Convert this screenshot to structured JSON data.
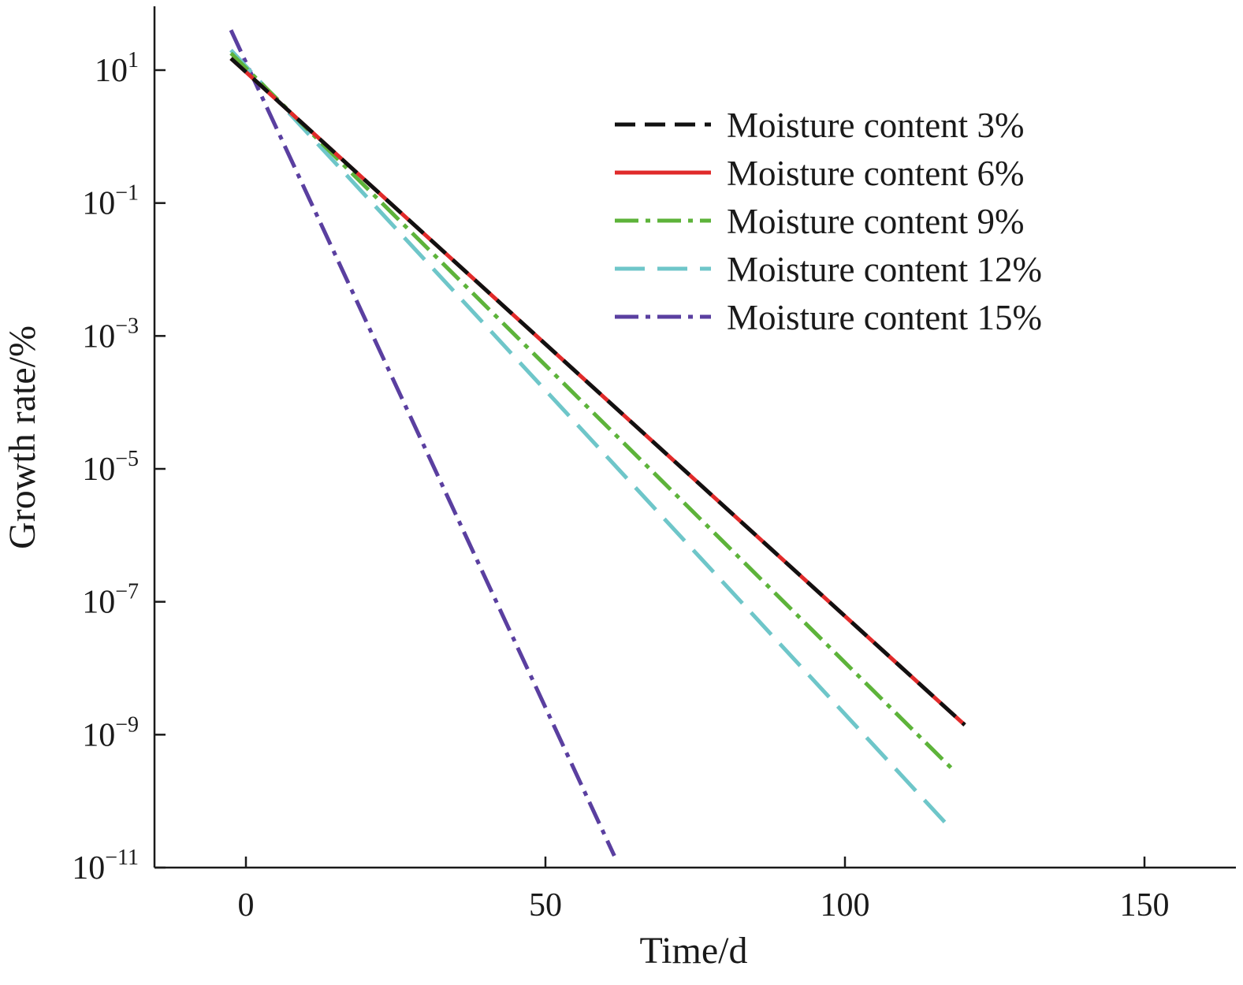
{
  "chart_data": {
    "type": "line",
    "title": "",
    "xlabel": "Time/d",
    "ylabel": "Growth rate/%",
    "xlim": [
      -15,
      165
    ],
    "ylim_log10": [
      -11,
      2
    ],
    "y_scale": "log",
    "x_ticks": [
      0,
      50,
      100,
      150
    ],
    "x_tick_labels": [
      "0",
      "50",
      "100",
      "150"
    ],
    "y_ticks": [
      {
        "exp": 1,
        "base": "10",
        "sup": "1"
      },
      {
        "exp": -1,
        "base": "10",
        "sup": "−1"
      },
      {
        "exp": -3,
        "base": "10",
        "sup": "−3"
      },
      {
        "exp": -5,
        "base": "10",
        "sup": "−5"
      },
      {
        "exp": -7,
        "base": "10",
        "sup": "−7"
      },
      {
        "exp": -9,
        "base": "10",
        "sup": "−9"
      },
      {
        "exp": -11,
        "base": "10",
        "sup": "−11"
      }
    ],
    "grid": false,
    "legend_position": "top-right",
    "series": [
      {
        "name": "Moisture content 3%",
        "color": "#111111",
        "dash": "dash",
        "x": [
          -2.5,
          120
        ],
        "y": [
          15,
          1.4e-09
        ]
      },
      {
        "name": "Moisture content 6%",
        "color": "#e02a2a",
        "dash": "solid",
        "x": [
          -2.5,
          120
        ],
        "y": [
          15,
          1.4e-09
        ]
      },
      {
        "name": "Moisture content 9%",
        "color": "#5db33a",
        "dash": "dashdot",
        "x": [
          -2.5,
          118.5
        ],
        "y": [
          18,
          2.7e-10
        ]
      },
      {
        "name": "Moisture content 12%",
        "color": "#6ec6c9",
        "dash": "longdash",
        "x": [
          -2.5,
          117.5
        ],
        "y": [
          20,
          4e-11
        ]
      },
      {
        "name": "Moisture content 15%",
        "color": "#5a3fa0",
        "dash": "dashdot",
        "x": [
          -2.5,
          61.5
        ],
        "y": [
          40,
          1.5e-11
        ]
      }
    ]
  }
}
